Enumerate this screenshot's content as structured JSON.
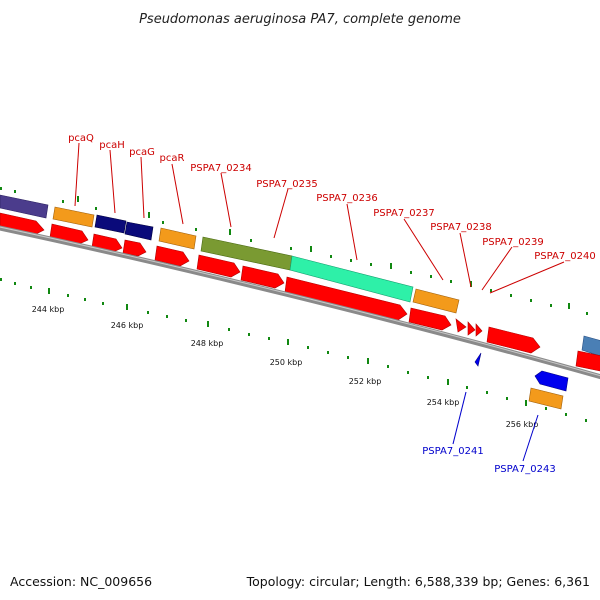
{
  "title": "Pseudomonas aeruginosa PA7, complete genome",
  "footer": {
    "accession": "Accession: NC_009656",
    "topology": "Topology: circular; Length: 6,588,339 bp; Genes: 6,361"
  },
  "colors": {
    "backbone": "#8a8a8a",
    "cds": "#ff0000",
    "tick": "#118811",
    "label_forward": "#cc0000",
    "label_reverse": "#0000cc"
  },
  "ticks": [
    {
      "label": "244 kbp"
    },
    {
      "label": "246 kbp"
    },
    {
      "label": "248 kbp"
    },
    {
      "label": "250 kbp"
    },
    {
      "label": "252 kbp"
    },
    {
      "label": "254 kbp"
    },
    {
      "label": "256 kbp"
    }
  ],
  "gene_labels": [
    {
      "text": "pcaQ",
      "strand": "forward"
    },
    {
      "text": "pcaH",
      "strand": "forward"
    },
    {
      "text": "pcaG",
      "strand": "forward"
    },
    {
      "text": "pcaR",
      "strand": "forward"
    },
    {
      "text": "PSPA7_0234",
      "strand": "forward"
    },
    {
      "text": "PSPA7_0235",
      "strand": "forward"
    },
    {
      "text": "PSPA7_0236",
      "strand": "forward"
    },
    {
      "text": "PSPA7_0237",
      "strand": "forward"
    },
    {
      "text": "PSPA7_0238",
      "strand": "forward"
    },
    {
      "text": "PSPA7_0239",
      "strand": "forward"
    },
    {
      "text": "PSPA7_0240",
      "strand": "forward"
    },
    {
      "text": "PSPA7_0241",
      "strand": "reverse"
    },
    {
      "text": "PSPA7_0243",
      "strand": "reverse"
    }
  ]
}
